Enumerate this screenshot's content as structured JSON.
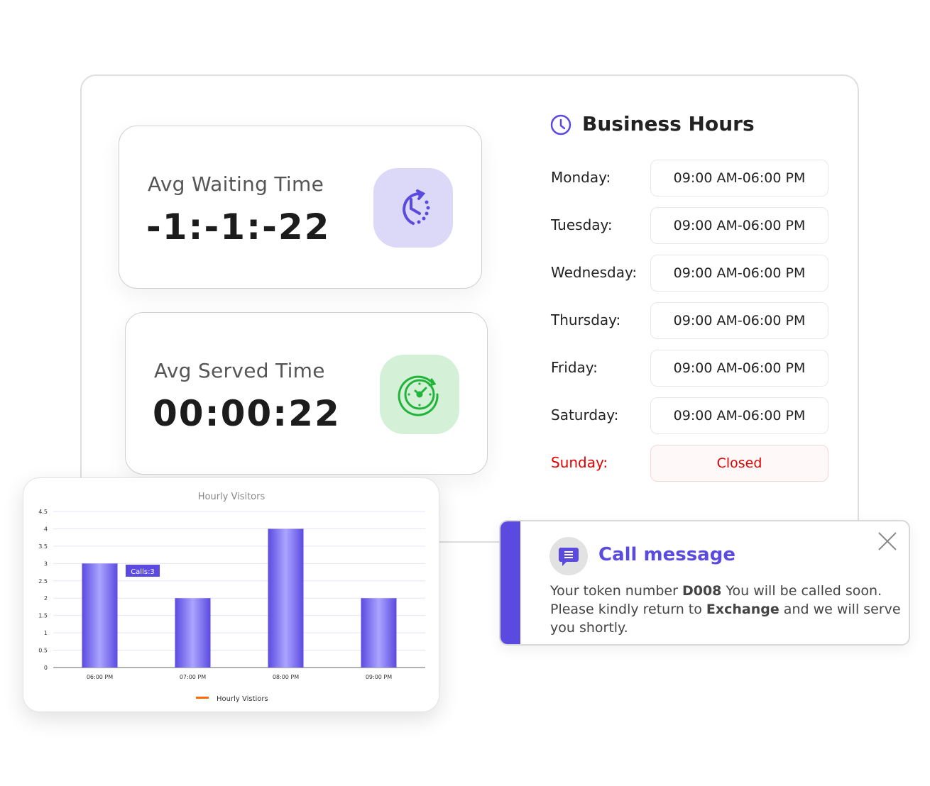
{
  "stats": {
    "waiting": {
      "label": "Avg Waiting Time",
      "value": "-1:-1:-22",
      "icon": "clock-rotate-icon",
      "color": "#5b4ae0",
      "bg": "#dcd8f8"
    },
    "served": {
      "label": "Avg Served Time",
      "value": "00:00:22",
      "icon": "stopwatch-refresh-icon",
      "color": "#22b33a",
      "bg": "#d4f1d8"
    }
  },
  "business_hours": {
    "title": "Business Hours",
    "icon": "clock-icon",
    "days": [
      {
        "day": "Monday:",
        "hours": "09:00 AM-06:00 PM"
      },
      {
        "day": "Tuesday:",
        "hours": "09:00 AM-06:00 PM"
      },
      {
        "day": "Wednesday:",
        "hours": "09:00 AM-06:00 PM"
      },
      {
        "day": "Thursday:",
        "hours": "09:00 AM-06:00 PM"
      },
      {
        "day": "Friday:",
        "hours": "09:00 AM-06:00 PM"
      },
      {
        "day": "Saturday:",
        "hours": "09:00 AM-06:00 PM"
      },
      {
        "day": "Sunday:",
        "hours": "Closed"
      }
    ],
    "closed_color": "#e00000"
  },
  "chart_data": {
    "type": "bar",
    "title": "Hourly Visitors",
    "categories": [
      "06:00 PM",
      "07:00 PM",
      "08:00 PM",
      "09:00 PM"
    ],
    "series": [
      {
        "name": "Hourly Vistiors",
        "values": [
          3,
          2,
          4,
          2
        ]
      }
    ],
    "ylim": [
      0,
      4.5
    ],
    "yticks": [
      "0",
      "0.5",
      "1",
      "1.5",
      "2",
      "2.5",
      "3",
      "3.5",
      "4",
      "4.5"
    ],
    "grid": true,
    "legend": "bottom",
    "tooltip": "Calls:3",
    "bar_color": "#5b4ae0",
    "legend_color": "#ff6a00"
  },
  "call_message": {
    "title": "Call message",
    "icon": "chat-message-icon",
    "text_1": "Your token number ",
    "token": "D008",
    "text_2": " You will be called soon. Please kindly return to ",
    "location": "Exchange",
    "text_3": " and we will serve you shortly.",
    "accent": "#5b4ae0"
  }
}
